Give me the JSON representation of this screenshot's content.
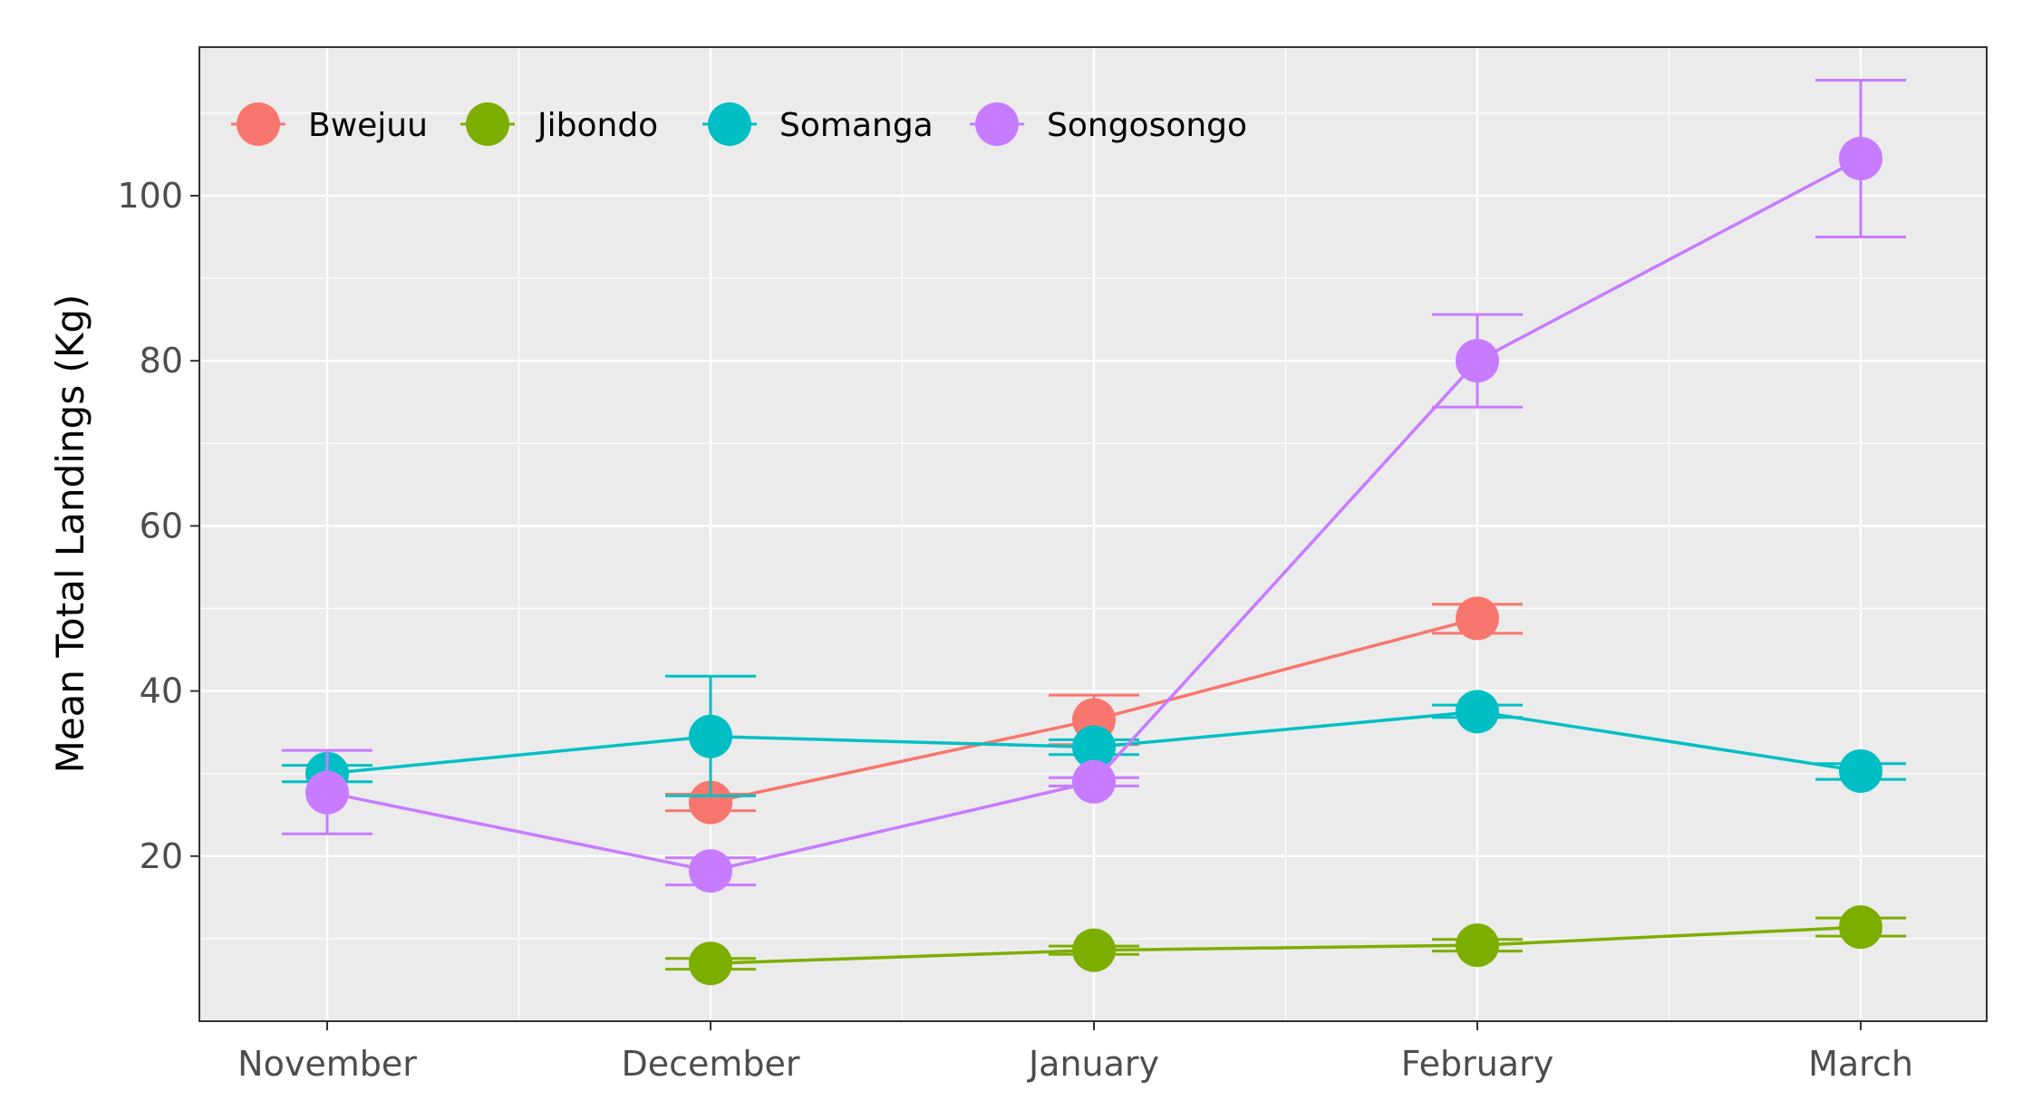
{
  "chart_data": {
    "type": "line",
    "title": "",
    "xlabel": "",
    "ylabel": "Mean Total Landings (Kg)",
    "categories": [
      "November",
      "December",
      "January",
      "February",
      "March"
    ],
    "ylim": [
      0,
      118
    ],
    "yticks": [
      20,
      40,
      60,
      80,
      100
    ],
    "grid": true,
    "legend_position": "top-left",
    "background": "#ebebeb",
    "series": [
      {
        "name": "Bwejuu",
        "color": "#F8766D",
        "values": [
          null,
          26.5,
          36.5,
          48.8,
          null
        ],
        "err_low": [
          null,
          25.5,
          33.5,
          47.0,
          null
        ],
        "err_high": [
          null,
          27.5,
          39.5,
          50.5,
          null
        ]
      },
      {
        "name": "Jibondo",
        "color": "#7CAE00",
        "values": [
          null,
          7.0,
          8.6,
          9.2,
          11.4
        ],
        "err_low": [
          null,
          6.3,
          8.1,
          8.5,
          10.3
        ],
        "err_high": [
          null,
          7.6,
          9.1,
          9.9,
          12.5
        ]
      },
      {
        "name": "Somanga",
        "color": "#00BFC4",
        "values": [
          30.0,
          34.5,
          33.2,
          37.5,
          30.3
        ],
        "err_low": [
          29.0,
          27.3,
          32.3,
          36.8,
          29.3
        ],
        "err_high": [
          31.0,
          41.8,
          34.1,
          38.3,
          31.2
        ]
      },
      {
        "name": "Songosongo",
        "color": "#C77CFF",
        "values": [
          27.7,
          18.2,
          29.0,
          80.0,
          104.5
        ],
        "err_low": [
          22.7,
          16.5,
          28.5,
          74.4,
          95.0
        ],
        "err_high": [
          32.8,
          19.8,
          29.5,
          85.6,
          114.0
        ]
      }
    ]
  }
}
